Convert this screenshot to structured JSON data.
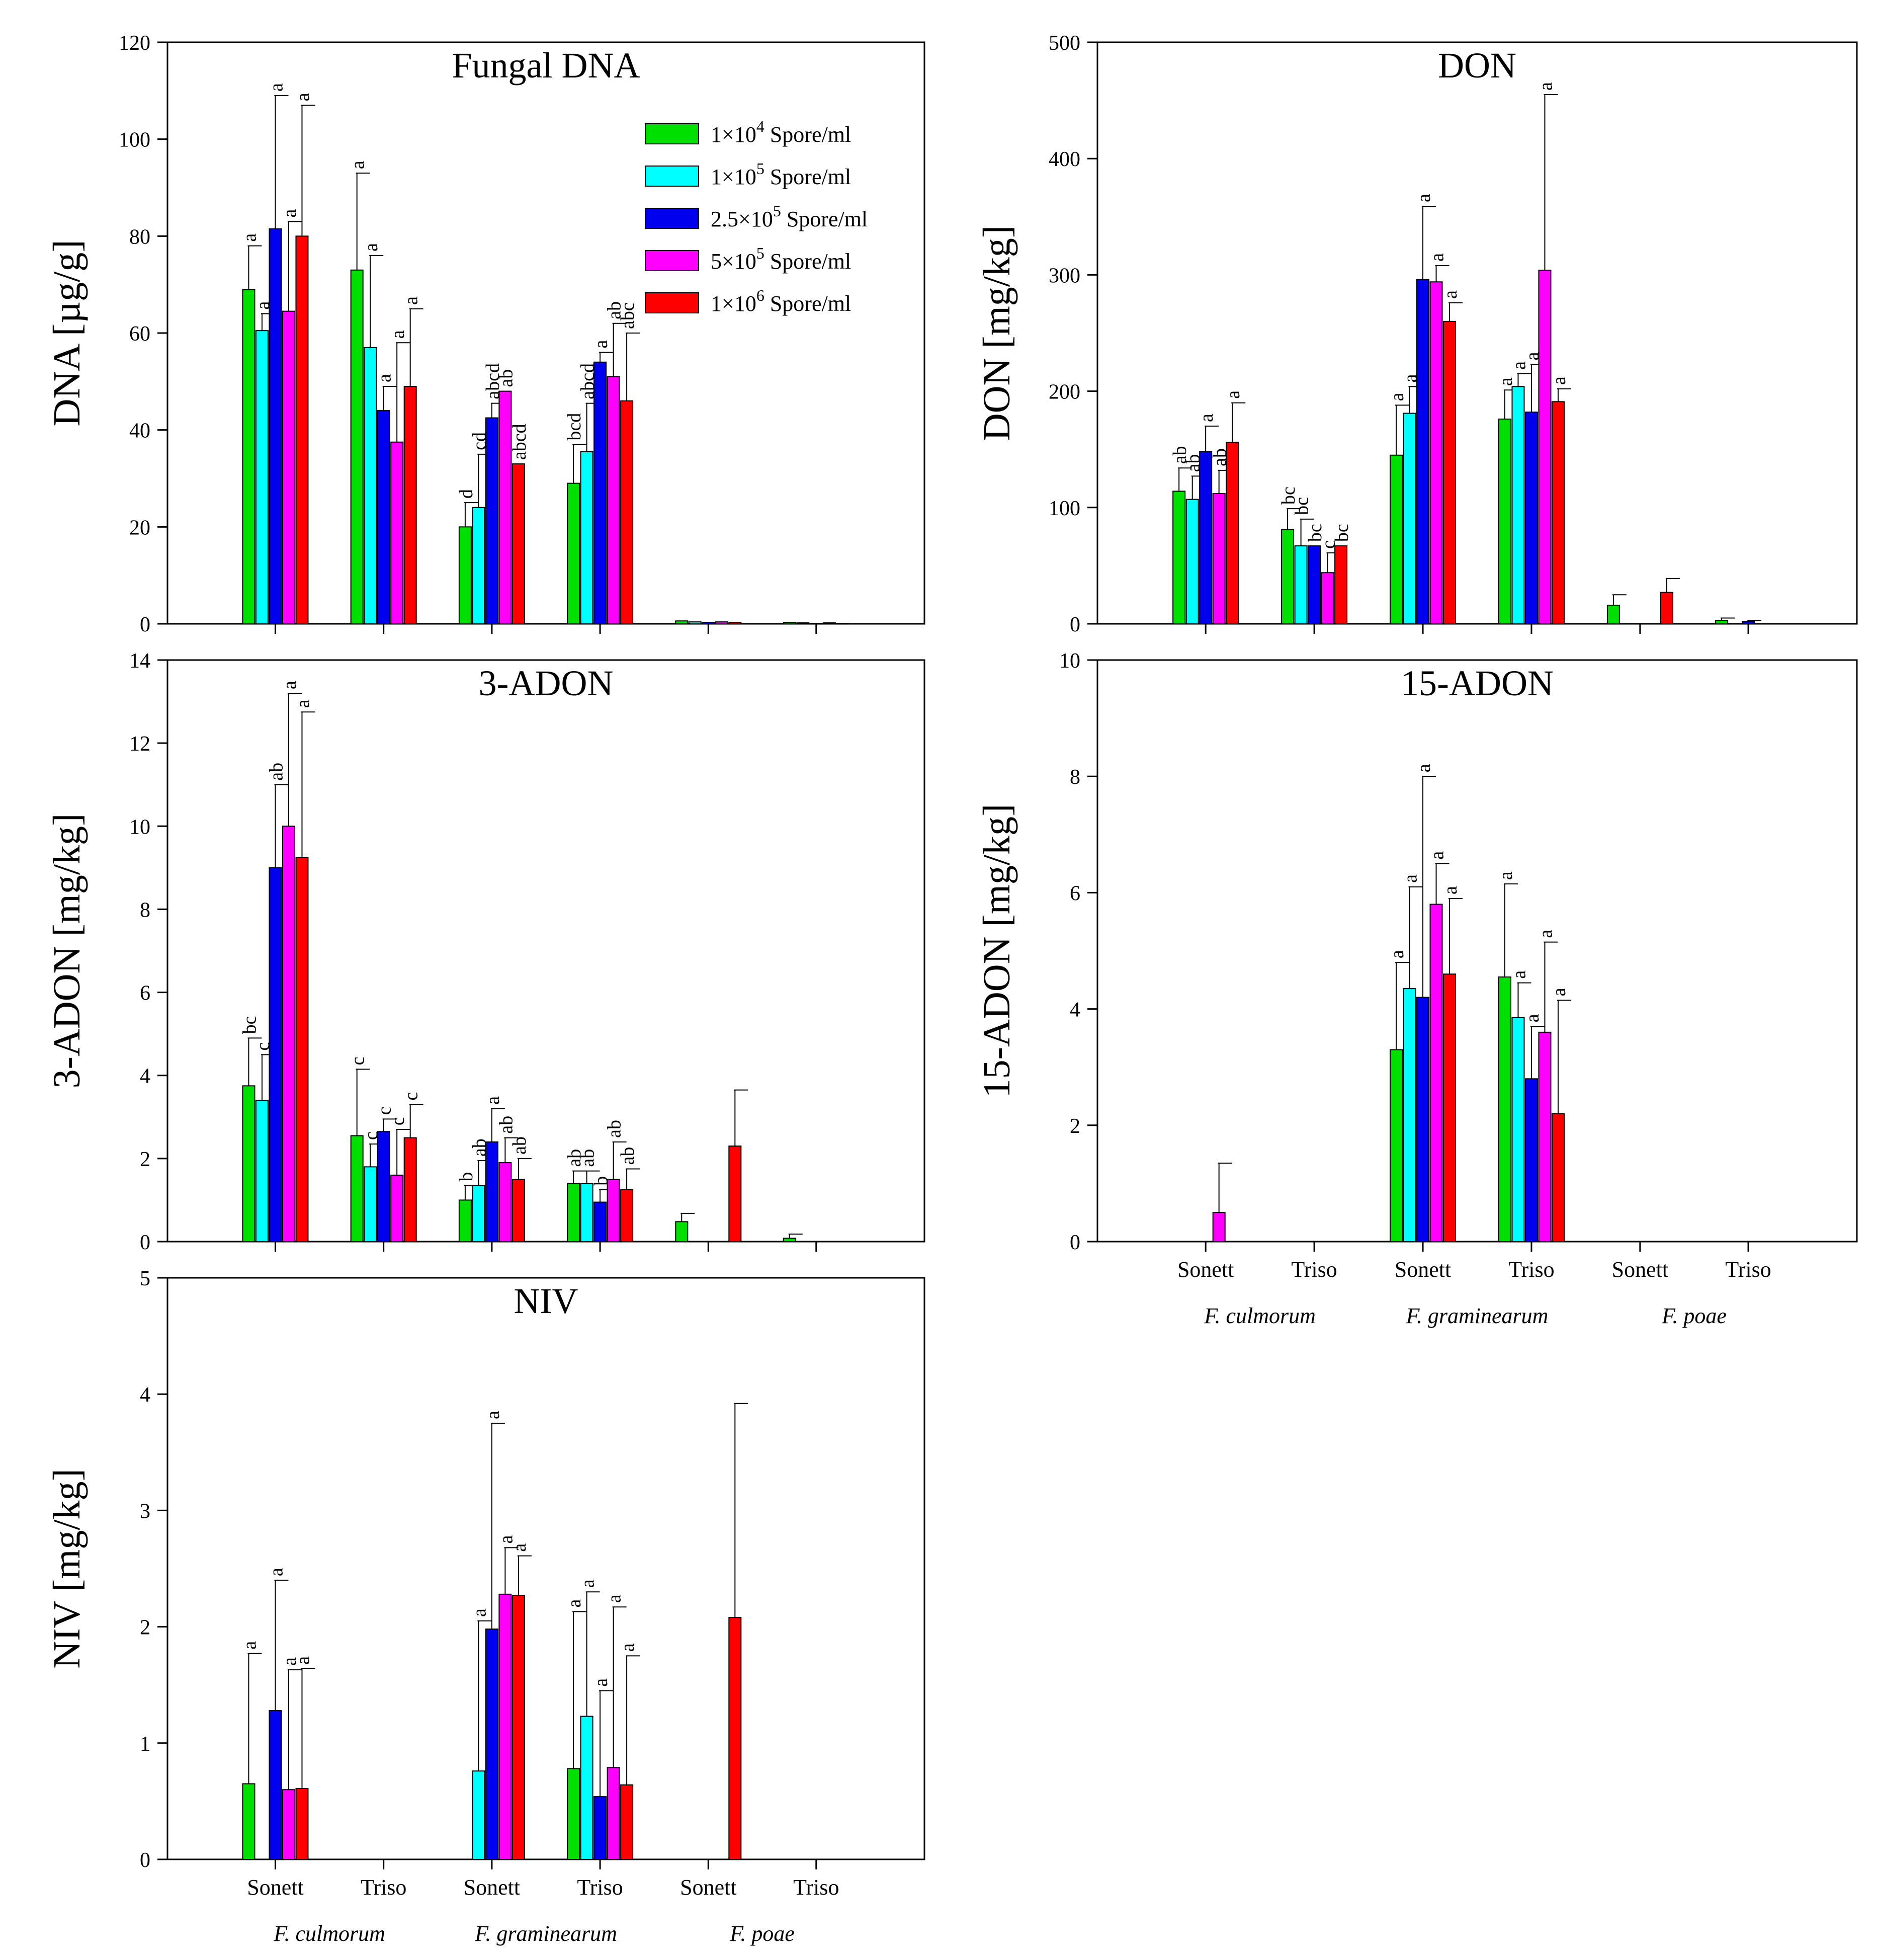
{
  "colors": {
    "series": [
      "#00e000",
      "#00ffff",
      "#0000ee",
      "#ff00ff",
      "#ff0000"
    ],
    "axis": "#000000"
  },
  "legend": {
    "entries": [
      {
        "prefix": "1×10",
        "sup": "4",
        "suffix": " Spore/ml"
      },
      {
        "prefix": "1×10",
        "sup": "5",
        "suffix": " Spore/ml"
      },
      {
        "prefix": "2.5×10",
        "sup": "5",
        "suffix": " Spore/ml"
      },
      {
        "prefix": "5×10",
        "sup": "5",
        "suffix": " Spore/ml"
      },
      {
        "prefix": "1×10",
        "sup": "6",
        "suffix": " Spore/ml"
      }
    ]
  },
  "x_axis": {
    "categories": [
      "Sonett",
      "Triso",
      "Sonett",
      "Triso",
      "Sonett",
      "Triso"
    ],
    "species": [
      "F. culmorum",
      "F. graminearum",
      "F. poae"
    ]
  },
  "chart_data": [
    {
      "type": "bar",
      "title": "Fungal DNA",
      "ylabel": "DNA [µg/g]",
      "ylim": [
        0,
        120
      ],
      "yticks": [
        0,
        20,
        40,
        60,
        80,
        100,
        120
      ],
      "ytick_labels": [
        "0",
        "20",
        "40",
        "60",
        "80",
        "100",
        "120"
      ],
      "series": [
        {
          "name": "1×10^4 Spore/ml",
          "values": [
            69,
            73,
            20,
            29,
            0.6,
            0.3
          ],
          "errors": [
            9,
            20,
            5,
            8,
            0,
            0
          ],
          "letters": [
            "a",
            "a",
            "d",
            "bcd",
            "",
            ""
          ]
        },
        {
          "name": "1×10^5 Spore/ml",
          "values": [
            60.5,
            57,
            24,
            35.5,
            0.4,
            0.2
          ],
          "errors": [
            3.5,
            19,
            11,
            10,
            0,
            0
          ],
          "letters": [
            "a",
            "a",
            "cd",
            "abcd",
            "",
            ""
          ]
        },
        {
          "name": "2.5×10^5 Spore/ml",
          "values": [
            81.5,
            44,
            42.5,
            54,
            0.3,
            0.1
          ],
          "errors": [
            27.5,
            5,
            3,
            2,
            0,
            0
          ],
          "letters": [
            "a",
            "a",
            "abcd",
            "a",
            "",
            ""
          ]
        },
        {
          "name": "5×10^5 Spore/ml",
          "values": [
            64.5,
            37.5,
            48,
            51,
            0.4,
            0.2
          ],
          "errors": [
            18.5,
            20.5,
            0,
            11,
            0,
            0
          ],
          "letters": [
            "a",
            "a",
            "ab",
            "ab",
            "",
            ""
          ]
        },
        {
          "name": "1×10^6 Spore/ml",
          "values": [
            80,
            49,
            33,
            46,
            0.3,
            0.1
          ],
          "errors": [
            27,
            16,
            0,
            14,
            0,
            0
          ],
          "letters": [
            "a",
            "a",
            "abcd",
            "abc",
            "",
            ""
          ]
        }
      ]
    },
    {
      "type": "bar",
      "title": "DON",
      "ylabel": "DON [mg/kg]",
      "ylim": [
        0,
        500
      ],
      "yticks": [
        0,
        100,
        200,
        300,
        400,
        500
      ],
      "ytick_labels": [
        "0",
        "100",
        "200",
        "300",
        "400",
        "500"
      ],
      "series": [
        {
          "name": "1×10^4 Spore/ml",
          "values": [
            114,
            81,
            145,
            176,
            16,
            3
          ],
          "errors": [
            20,
            18,
            43,
            25,
            9,
            2
          ],
          "letters": [
            "ab",
            "bc",
            "a",
            "a",
            "",
            ""
          ]
        },
        {
          "name": "1×10^5 Spore/ml",
          "values": [
            107,
            67,
            181,
            204,
            0,
            0
          ],
          "errors": [
            20,
            23,
            23,
            11,
            0,
            0
          ],
          "letters": [
            "ab",
            "bc",
            "a",
            "a",
            "",
            ""
          ]
        },
        {
          "name": "2.5×10^5 Spore/ml",
          "values": [
            148,
            67,
            296,
            182,
            0,
            2
          ],
          "errors": [
            22,
            0,
            63,
            41,
            0,
            1
          ],
          "letters": [
            "a",
            "bc",
            "a",
            "a",
            "",
            ""
          ]
        },
        {
          "name": "5×10^5 Spore/ml",
          "values": [
            112,
            44,
            294,
            304,
            0,
            0
          ],
          "errors": [
            20,
            17,
            14,
            151,
            0,
            0
          ],
          "letters": [
            "ab",
            "c",
            "a",
            "a",
            "",
            ""
          ]
        },
        {
          "name": "1×10^6 Spore/ml",
          "values": [
            156,
            67,
            260,
            191,
            27,
            0
          ],
          "errors": [
            34,
            0,
            16,
            11,
            12,
            0
          ],
          "letters": [
            "a",
            "bc",
            "a",
            "a",
            "",
            ""
          ]
        }
      ]
    },
    {
      "type": "bar",
      "title": "3-ADON",
      "ylabel": "3-ADON [mg/kg]",
      "ylim": [
        0,
        14
      ],
      "yticks": [
        0,
        2,
        4,
        6,
        8,
        10,
        12,
        14
      ],
      "ytick_labels": [
        "0",
        "2",
        "4",
        "6",
        "8",
        "10",
        "12",
        "14"
      ],
      "series": [
        {
          "name": "1×10^4 Spore/ml",
          "values": [
            3.75,
            2.55,
            1.0,
            1.4,
            0.48,
            0.08
          ],
          "errors": [
            1.15,
            1.6,
            0.35,
            0.3,
            0.2,
            0.1
          ],
          "letters": [
            "bc",
            "c",
            "b",
            "ab",
            "",
            ""
          ]
        },
        {
          "name": "1×10^5 Spore/ml",
          "values": [
            3.4,
            1.8,
            1.35,
            1.4,
            0,
            0
          ],
          "errors": [
            1.1,
            0.55,
            0.6,
            0.3,
            0,
            0
          ],
          "letters": [
            "c",
            "c",
            "ab",
            "ab",
            "",
            ""
          ]
        },
        {
          "name": "2.5×10^5 Spore/ml",
          "values": [
            9.0,
            2.65,
            2.4,
            0.95,
            0,
            0
          ],
          "errors": [
            2.0,
            0.3,
            0.8,
            0.3,
            0,
            0
          ],
          "letters": [
            "ab",
            "c",
            "a",
            "b",
            "",
            ""
          ]
        },
        {
          "name": "5×10^5 Spore/ml",
          "values": [
            10.0,
            1.6,
            1.9,
            1.5,
            0,
            0
          ],
          "errors": [
            3.2,
            1.1,
            0.6,
            0.9,
            0,
            0
          ],
          "letters": [
            "a",
            "c",
            "ab",
            "ab",
            "",
            ""
          ]
        },
        {
          "name": "1×10^6 Spore/ml",
          "values": [
            9.25,
            2.5,
            1.5,
            1.25,
            2.3,
            0
          ],
          "errors": [
            3.5,
            0.8,
            0.5,
            0.5,
            1.35,
            0
          ],
          "letters": [
            "a",
            "c",
            "ab",
            "ab",
            "",
            ""
          ]
        }
      ]
    },
    {
      "type": "bar",
      "title": "15-ADON",
      "ylabel": "15-ADON [mg/kg]",
      "ylim": [
        0,
        10
      ],
      "yticks": [
        0,
        2,
        4,
        6,
        8,
        10
      ],
      "ytick_labels": [
        "0",
        "2",
        "4",
        "6",
        "8",
        "10"
      ],
      "series": [
        {
          "name": "1×10^4 Spore/ml",
          "values": [
            0,
            0,
            3.3,
            4.55,
            0,
            0
          ],
          "errors": [
            0,
            0,
            1.5,
            1.6,
            0,
            0
          ],
          "letters": [
            "",
            "",
            "a",
            "a",
            "",
            ""
          ]
        },
        {
          "name": "1×10^5 Spore/ml",
          "values": [
            0,
            0,
            4.35,
            3.85,
            0,
            0
          ],
          "errors": [
            0,
            0,
            1.75,
            0.6,
            0,
            0
          ],
          "letters": [
            "",
            "",
            "a",
            "a",
            "",
            ""
          ]
        },
        {
          "name": "2.5×10^5 Spore/ml",
          "values": [
            0,
            0,
            4.2,
            2.8,
            0,
            0
          ],
          "errors": [
            0,
            0,
            3.8,
            0.9,
            0,
            0
          ],
          "letters": [
            "",
            "",
            "a",
            "a",
            "",
            ""
          ]
        },
        {
          "name": "5×10^5 Spore/ml",
          "values": [
            0.5,
            0,
            5.8,
            3.6,
            0,
            0
          ],
          "errors": [
            0.85,
            0,
            0.7,
            1.55,
            0,
            0
          ],
          "letters": [
            "",
            "",
            "a",
            "a",
            "",
            ""
          ]
        },
        {
          "name": "1×10^6 Spore/ml",
          "values": [
            0,
            0,
            4.6,
            2.2,
            0,
            0
          ],
          "errors": [
            0,
            0,
            1.3,
            1.95,
            0,
            0
          ],
          "letters": [
            "",
            "",
            "a",
            "a",
            "",
            ""
          ]
        }
      ]
    },
    {
      "type": "bar",
      "title": "NIV",
      "ylabel": "NIV [mg/kg]",
      "ylim": [
        0,
        5
      ],
      "yticks": [
        0,
        1,
        2,
        3,
        4,
        5
      ],
      "ytick_labels": [
        "0",
        "1",
        "2",
        "3",
        "4",
        "5"
      ],
      "series": [
        {
          "name": "1×10^4 Spore/ml",
          "values": [
            0.65,
            0,
            0,
            0.78,
            0,
            0
          ],
          "errors": [
            1.12,
            0,
            0,
            1.35,
            0,
            0
          ],
          "letters": [
            "a",
            "",
            "",
            "a",
            "",
            ""
          ]
        },
        {
          "name": "1×10^5 Spore/ml",
          "values": [
            0,
            0,
            0.76,
            1.23,
            0,
            0
          ],
          "errors": [
            0,
            0,
            1.29,
            1.07,
            0,
            0
          ],
          "letters": [
            "",
            "",
            "a",
            "a",
            "",
            ""
          ]
        },
        {
          "name": "2.5×10^5 Spore/ml",
          "values": [
            1.28,
            0,
            1.98,
            0.54,
            0,
            0
          ],
          "errors": [
            1.12,
            0,
            1.77,
            0.91,
            0,
            0
          ],
          "letters": [
            "a",
            "",
            "a",
            "a",
            "",
            ""
          ]
        },
        {
          "name": "5×10^5 Spore/ml",
          "values": [
            0.6,
            0,
            2.28,
            0.79,
            0,
            0
          ],
          "errors": [
            1.03,
            0,
            0.4,
            1.38,
            0,
            0
          ],
          "letters": [
            "a",
            "",
            "a",
            "a",
            "",
            ""
          ]
        },
        {
          "name": "1×10^6 Spore/ml",
          "values": [
            0.61,
            0,
            2.27,
            0.64,
            2.08,
            0
          ],
          "errors": [
            1.03,
            0,
            0.34,
            1.11,
            1.84,
            0
          ],
          "letters": [
            "a",
            "",
            "a",
            "a",
            "",
            ""
          ]
        }
      ]
    }
  ]
}
